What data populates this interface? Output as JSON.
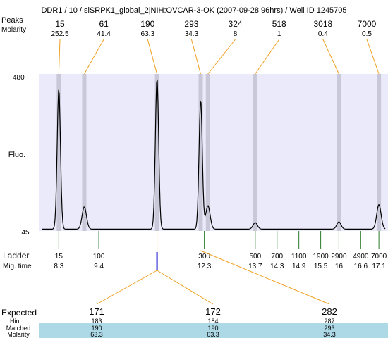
{
  "header": {
    "title": "DDR1 / 10 / siSRPK1_global_2|NIH:OVCAR-3-OK (2007-09-28 96hrs) / Well ID 1245705",
    "row_labels": [
      "Peaks",
      "Molarity"
    ]
  },
  "axis": {
    "ylabel": "Fluo.",
    "ytick_top": "480",
    "ytick_bottom": "45"
  },
  "ladder_section": {
    "label": "Ladder",
    "mig_label": "Mig. time"
  },
  "expected_section": {
    "label": "Expected",
    "row_labels": [
      "Hint",
      "Matched",
      "Molarity"
    ]
  },
  "colors": {
    "plot_bg": "#eaeafa",
    "band": "#c8c8d8",
    "connector": "#f0a020",
    "ladder_tick": "#2a7a2a",
    "highlight_mark": "#1a1acc",
    "expected_value": "#dd2222",
    "table_bg": "#add8e6",
    "trace": "#000000"
  },
  "chart_data": {
    "type": "line",
    "ylim": [
      45,
      480
    ],
    "mig_time_range": [
      7.75,
      17.35
    ],
    "grid": false,
    "peaks": [
      {
        "size": "15",
        "molarity": "252.5",
        "mig": 8.3,
        "height": 440
      },
      {
        "size": "61",
        "molarity": "41.4",
        "mig": 9.0,
        "height": 112
      },
      {
        "size": "190",
        "molarity": "63.3",
        "mig": 11.0,
        "height": 470
      },
      {
        "size": "293",
        "molarity": "34.3",
        "mig": 12.2,
        "height": 410
      },
      {
        "size": "324",
        "molarity": "8",
        "mig": 12.4,
        "height": 115
      },
      {
        "size": "518",
        "molarity": "1",
        "mig": 13.7,
        "height": 68
      },
      {
        "size": "3018",
        "molarity": "0.4",
        "mig": 16.0,
        "height": 70
      },
      {
        "size": "7000",
        "molarity": "0.5",
        "mig": 17.1,
        "height": 118
      }
    ],
    "ladder": [
      {
        "size": "15",
        "mig": "8.3",
        "t": 8.3
      },
      {
        "size": "100",
        "mig": "9.4",
        "t": 9.4
      },
      {
        "size": "300",
        "mig": "12.3",
        "t": 12.3
      },
      {
        "size": "500",
        "mig": "13.7",
        "t": 13.7
      },
      {
        "size": "700",
        "mig": "14.3",
        "t": 14.3
      },
      {
        "size": "1100",
        "mig": "14.9",
        "t": 14.9
      },
      {
        "size": "1900",
        "mig": "15.5",
        "t": 15.5
      },
      {
        "size": "2900",
        "mig": "16",
        "t": 16.0
      },
      {
        "size": "4900",
        "mig": "16.6",
        "t": 16.6
      },
      {
        "size": "7000",
        "mig": "17.1",
        "t": 17.1
      }
    ],
    "highlight_mig": 11.0,
    "expected": [
      {
        "value": "171",
        "hint": "183",
        "matched": "190",
        "molarity": "63.3",
        "peak_mig": 11.0
      },
      {
        "value": "172",
        "hint": "184",
        "matched": "190",
        "molarity": "63.3",
        "peak_mig": 11.0
      },
      {
        "value": "282",
        "hint": "287",
        "matched": "293",
        "molarity": "34.3",
        "peak_mig": 12.2
      }
    ]
  }
}
